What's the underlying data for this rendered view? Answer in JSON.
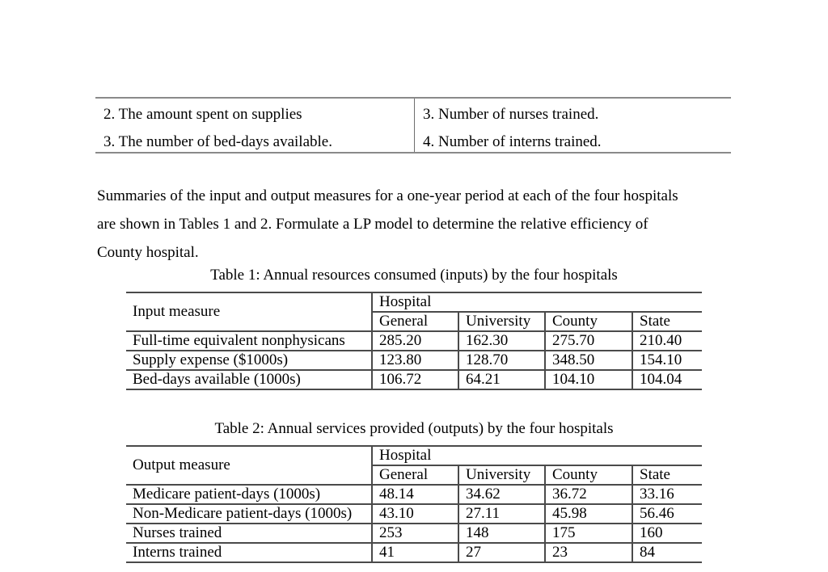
{
  "page": {
    "background": "#ffffff",
    "text_color": "#000000",
    "table_border_color": "#4a4a4a",
    "top_rule_color": "#8a8a8a"
  },
  "top_list_table": {
    "left_items": [
      "2. The amount spent on supplies",
      "3. The number of bed-days available."
    ],
    "right_items": [
      "3. Number of nurses trained.",
      "4. Number of interns trained."
    ]
  },
  "paragraph": {
    "lines": [
      "Summaries of the input and output measures for a one-year period at each of the four hospitals",
      "are shown in Tables 1 and 2. Formulate a LP model to determine the relative efficiency of",
      "County hospital."
    ]
  },
  "table1": {
    "caption": "Table 1: Annual resources consumed (inputs) by the four hospitals",
    "measure_header": "Input measure",
    "group_header": "Hospital",
    "columns": [
      "General",
      "University",
      "County",
      "State"
    ],
    "rows": [
      {
        "label": "Full-time equivalent nonphysicans",
        "values": [
          "285.20",
          "162.30",
          "275.70",
          "210.40"
        ]
      },
      {
        "label": "Supply expense ($1000s)",
        "values": [
          "123.80",
          "128.70",
          "348.50",
          "154.10"
        ]
      },
      {
        "label": "Bed-days available (1000s)",
        "values": [
          "106.72",
          "64.21",
          "104.10",
          "104.04"
        ]
      }
    ]
  },
  "table2": {
    "caption": "Table 2: Annual services provided (outputs) by the four hospitals",
    "measure_header": "Output measure",
    "group_header": "Hospital",
    "columns": [
      "General",
      "University",
      "County",
      "State"
    ],
    "rows": [
      {
        "label": "Medicare patient-days (1000s)",
        "values": [
          "48.14",
          "34.62",
          "36.72",
          "33.16"
        ]
      },
      {
        "label": "Non-Medicare patient-days (1000s)",
        "values": [
          "43.10",
          "27.11",
          "45.98",
          "56.46"
        ]
      },
      {
        "label": "Nurses trained",
        "values": [
          "253",
          "148",
          "175",
          "160"
        ]
      },
      {
        "label": "Interns trained",
        "values": [
          "41",
          "27",
          "23",
          "84"
        ]
      }
    ]
  }
}
